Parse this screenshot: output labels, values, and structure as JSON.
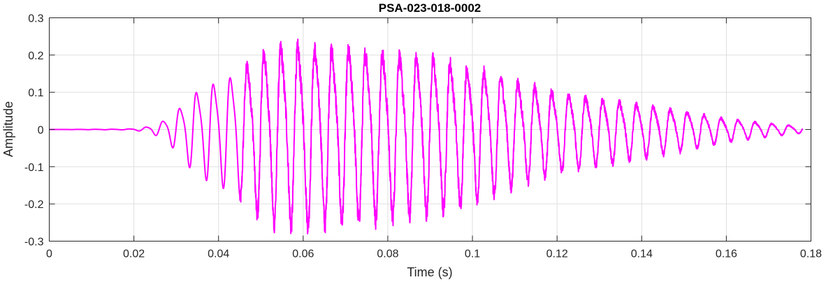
{
  "chart_data": {
    "type": "line",
    "title": "PSA-023-018-0002",
    "xlabel": "Time (s)",
    "ylabel": "Amplitude",
    "xlim": [
      0,
      0.18
    ],
    "ylim": [
      -0.3,
      0.3
    ],
    "xticks": [
      0,
      0.02,
      0.04,
      0.06,
      0.08,
      0.1,
      0.12,
      0.14,
      0.16,
      0.18
    ],
    "xtick_labels": [
      "0",
      "0.02",
      "0.04",
      "0.06",
      "0.08",
      "0.1",
      "0.12",
      "0.14",
      "0.16",
      "0.18"
    ],
    "yticks": [
      0.3,
      0.2,
      0.1,
      0,
      -0.1,
      -0.2,
      -0.3
    ],
    "ytick_labels": [
      "0.3",
      "0.2",
      "0.1",
      "0",
      "-0.1",
      "-0.2",
      "-0.3"
    ],
    "grid": true,
    "legend": "none",
    "series": [
      {
        "color": "#ff00ff",
        "envelope_t": [
          0,
          0.018,
          0.022,
          0.026,
          0.03,
          0.034,
          0.038,
          0.042,
          0.046,
          0.05,
          0.055,
          0.06,
          0.065,
          0.07,
          0.075,
          0.08,
          0.085,
          0.09,
          0.095,
          0.1,
          0.105,
          0.11,
          0.115,
          0.12,
          0.13,
          0.14,
          0.15,
          0.16,
          0.17,
          0.178
        ],
        "envelope_amp": [
          0,
          0.001,
          0.005,
          0.02,
          0.06,
          0.12,
          0.15,
          0.17,
          0.2,
          0.25,
          0.27,
          0.27,
          0.265,
          0.26,
          0.255,
          0.25,
          0.24,
          0.235,
          0.22,
          0.2,
          0.18,
          0.16,
          0.14,
          0.12,
          0.1,
          0.08,
          0.06,
          0.035,
          0.02,
          0.01
        ],
        "period_s": 0.004,
        "x_range": [
          0,
          0.178
        ]
      }
    ]
  }
}
